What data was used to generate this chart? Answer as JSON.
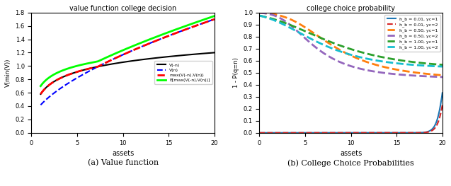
{
  "left_title": "value function college decision",
  "left_xlabel": "assets",
  "left_ylabel": "V(min(V))",
  "left_xlim": [
    0,
    20
  ],
  "left_ylim": [
    0,
    1.8
  ],
  "left_yticks": [
    0,
    0.2,
    0.4,
    0.6,
    0.8,
    1.0,
    1.2,
    1.4,
    1.6,
    1.8
  ],
  "left_xticks": [
    0,
    5,
    10,
    15,
    20
  ],
  "left_caption": "(a) Value function",
  "right_title": "college choice probability",
  "right_xlabel": "assets",
  "right_ylabel": "1 - P(q=n)",
  "right_xlim": [
    0,
    20
  ],
  "right_ylim": [
    0,
    1
  ],
  "right_yticks": [
    0.0,
    0.1,
    0.2,
    0.3,
    0.4,
    0.5,
    0.6,
    0.7,
    0.8,
    0.9,
    1.0
  ],
  "right_xticks": [
    0,
    5,
    10,
    15,
    20
  ],
  "right_caption": "(b) College Choice Probabilities",
  "legend_left": [
    {
      "label": "V(-n)",
      "color": "black",
      "linestyle": "solid",
      "lw": 1.5
    },
    {
      "label": "V(n)",
      "color": "blue",
      "linestyle": "dashed",
      "lw": 1.5
    },
    {
      "label": "max(V(-n),V(n))",
      "color": "red",
      "linestyle": "dashed",
      "lw": 2.0
    },
    {
      "label": "E[max(V(-n),V(n))]",
      "color": "lime",
      "linestyle": "solid",
      "lw": 2.0
    }
  ],
  "legend_right": [
    {
      "label": "h_b = 0.01, yc=1",
      "color": "#1f77b4",
      "linestyle": "solid",
      "lw": 1.5
    },
    {
      "label": "h_b = 0.01, yc=2",
      "color": "#d62728",
      "linestyle": "dashed",
      "lw": 1.5
    },
    {
      "label": "h_b = 0.50, yc=1",
      "color": "#ff7f0e",
      "linestyle": "dashed",
      "lw": 2.0
    },
    {
      "label": "h_b = 0.50, yc=2",
      "color": "#9467bd",
      "linestyle": "dashed",
      "lw": 2.0
    },
    {
      "label": "h_b = 1.00, yc=1",
      "color": "#2ca02c",
      "linestyle": "dashed",
      "lw": 2.0
    },
    {
      "label": "h_b = 1.00, yc=2",
      "color": "#17becf",
      "linestyle": "dashed",
      "lw": 2.0
    }
  ]
}
